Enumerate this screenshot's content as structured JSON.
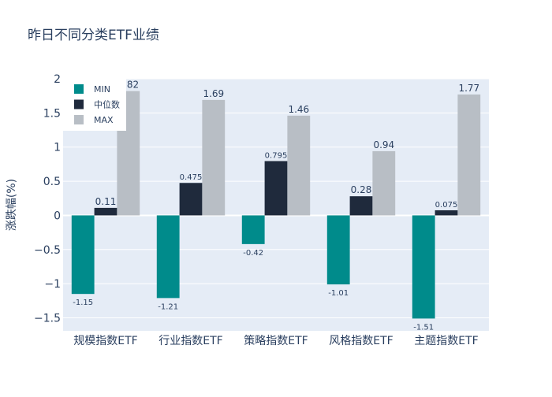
{
  "chart_data": {
    "type": "bar",
    "title": "昨日不同分类ETF业绩",
    "ylabel": "涨跌幅(%)",
    "xlabel": "",
    "categories": [
      "规模指数ETF",
      "行业指数ETF",
      "策略指数ETF",
      "风格指数ETF",
      "主题指数ETF"
    ],
    "series": [
      {
        "name": "MIN",
        "values": [
          -1.15,
          -1.21,
          -0.42,
          -1.01,
          -1.51
        ],
        "labels": [
          "-1.15",
          "-1.21",
          "-0.42",
          "-1.01",
          "-1.51"
        ],
        "color": "#008b8b"
      },
      {
        "name": "中位数",
        "values": [
          0.11,
          0.475,
          0.795,
          0.28,
          0.075
        ],
        "labels": [
          "0.11",
          "0.475",
          "0.795",
          "0.28",
          "0.075"
        ],
        "color": "#1f2a3c"
      },
      {
        "name": "MAX",
        "values": [
          1.82,
          1.69,
          1.46,
          0.94,
          1.77
        ],
        "labels": [
          "1.82",
          "1.69",
          "1.46",
          "0.94",
          "1.77"
        ],
        "color": "#b8bec5"
      }
    ],
    "ylim": [
      -1.69,
      2.0
    ],
    "yticks": [
      -1.5,
      -1,
      -0.5,
      0,
      0.5,
      1,
      1.5,
      2
    ],
    "ytick_labels": [
      "−1.5",
      "−1",
      "−0.5",
      "0",
      "0.5",
      "1",
      "1.5",
      "2"
    ],
    "grid": true,
    "legend_position": "top-left"
  }
}
